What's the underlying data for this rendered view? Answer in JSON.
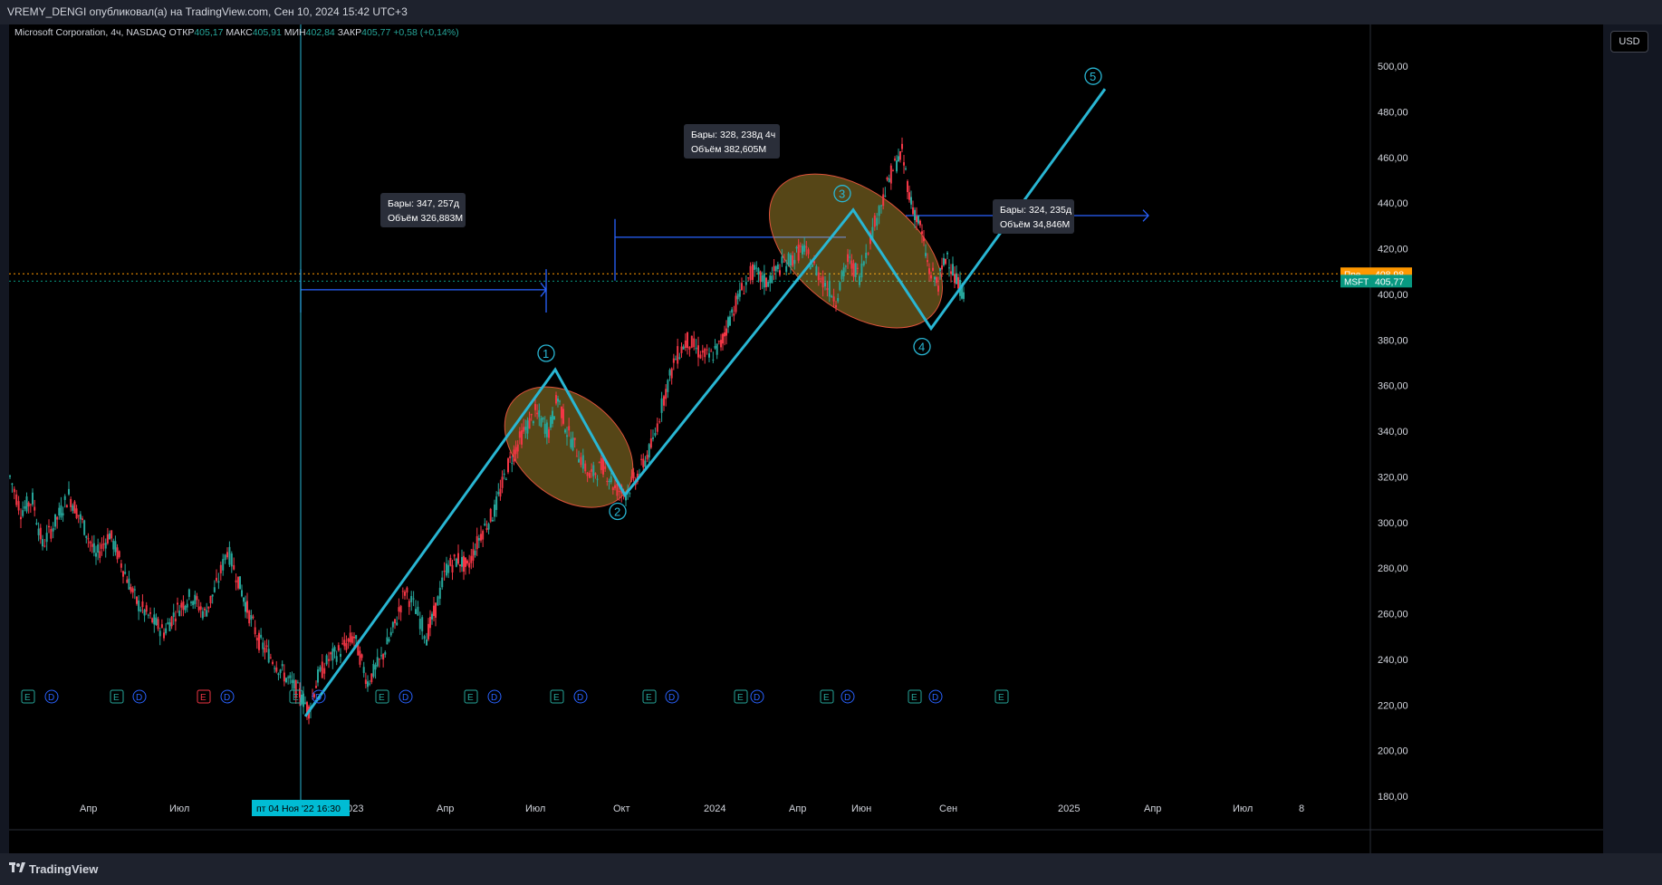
{
  "header": {
    "publisher_text": "VREMY_DENGI опубликовал(а) на TradingView.com, Сен 10, 2024 15:42 UTC+3"
  },
  "legend": {
    "symbol": "Microsoft Corporation, 4ч, NASDAQ",
    "open_label": "ОТКР",
    "open_value": "405,17",
    "high_label": "МАКС",
    "high_value": "405,91",
    "low_label": "МИН",
    "low_value": "402,84",
    "close_label": "ЗАКР",
    "close_value": "405,77",
    "change": "+0,58 (+0,14%)"
  },
  "currency_button": "USD",
  "brand": {
    "name": "TradingView"
  },
  "price_tags": [
    {
      "label": "Пре",
      "value": "408,98",
      "color": "#ff9800"
    },
    {
      "label": "MSFT",
      "value": "405,77",
      "color": "#089981"
    }
  ],
  "crosshair_label": "пт 04 Ноя '22   16:30",
  "measure_boxes": [
    {
      "line1": "Бары: 347, 257д",
      "line2": "Объём 326,883M"
    },
    {
      "line1": "Бары: 328, 238д 4ч",
      "line2": "Объём 382,605M"
    },
    {
      "line1": "Бары: 324, 235д",
      "line2": "Объём 34,846M"
    }
  ],
  "wave_labels": [
    "1",
    "2",
    "3",
    "4",
    "5"
  ],
  "event_markers": [
    {
      "t": "E",
      "c": "#26a69a"
    },
    {
      "t": "D",
      "c": "#2962ff"
    },
    {
      "t": "E",
      "c": "#26a69a"
    },
    {
      "t": "D",
      "c": "#2962ff"
    },
    {
      "t": "E",
      "c": "#f23645"
    },
    {
      "t": "D",
      "c": "#2962ff"
    },
    {
      "t": "E",
      "c": "#26a69a"
    },
    {
      "t": "D",
      "c": "#2962ff"
    },
    {
      "t": "E",
      "c": "#26a69a"
    },
    {
      "t": "D",
      "c": "#2962ff"
    },
    {
      "t": "E",
      "c": "#26a69a"
    },
    {
      "t": "D",
      "c": "#2962ff"
    },
    {
      "t": "E",
      "c": "#26a69a"
    },
    {
      "t": "D",
      "c": "#2962ff"
    },
    {
      "t": "E",
      "c": "#26a69a"
    },
    {
      "t": "D",
      "c": "#2962ff"
    },
    {
      "t": "E",
      "c": "#26a69a"
    },
    {
      "t": "D",
      "c": "#2962ff"
    },
    {
      "t": "E",
      "c": "#26a69a"
    },
    {
      "t": "D",
      "c": "#2962ff"
    },
    {
      "t": "E",
      "c": "#26a69a"
    },
    {
      "t": "D",
      "c": "#2962ff"
    },
    {
      "t": "E",
      "c": "#26a69a"
    },
    {
      "t": "D",
      "c": "#2962ff"
    },
    {
      "t": "E",
      "c": "#e040fb"
    }
  ],
  "chart_data": {
    "type": "line",
    "y_ticks": [
      "500,00",
      "480,00",
      "460,00",
      "440,00",
      "420,00",
      "400,00",
      "380,00",
      "360,00",
      "340,00",
      "320,00",
      "300,00",
      "280,00",
      "260,00",
      "240,00",
      "220,00",
      "200,00",
      "180,00"
    ],
    "x_ticks": [
      "Апр",
      "Июл",
      "2023",
      "Апр",
      "Июл",
      "Окт",
      "2024",
      "Апр",
      "Июн",
      "Сен",
      "2025",
      "Апр",
      "Июл",
      "8"
    ],
    "ylim": [
      180,
      500
    ],
    "colors": {
      "up": "#26a69a",
      "down": "#f23645",
      "wave": "#29b6d3",
      "ellipse": "#f5c842",
      "measure": "#2962ff"
    },
    "price_path": [
      [
        0,
        320
      ],
      [
        12,
        305
      ],
      [
        25,
        310
      ],
      [
        36,
        290
      ],
      [
        50,
        300
      ],
      [
        65,
        312
      ],
      [
        80,
        300
      ],
      [
        95,
        285
      ],
      [
        110,
        295
      ],
      [
        125,
        280
      ],
      [
        140,
        265
      ],
      [
        155,
        258
      ],
      [
        170,
        252
      ],
      [
        185,
        262
      ],
      [
        200,
        268
      ],
      [
        215,
        260
      ],
      [
        228,
        272
      ],
      [
        240,
        288
      ],
      [
        252,
        275
      ],
      [
        262,
        262
      ],
      [
        275,
        248
      ],
      [
        290,
        240
      ],
      [
        305,
        232
      ],
      [
        320,
        225
      ],
      [
        330,
        218
      ],
      [
        340,
        232
      ],
      [
        352,
        240
      ],
      [
        365,
        244
      ],
      [
        380,
        250
      ],
      [
        395,
        230
      ],
      [
        410,
        240
      ],
      [
        425,
        255
      ],
      [
        436,
        270
      ],
      [
        448,
        262
      ],
      [
        460,
        250
      ],
      [
        470,
        262
      ],
      [
        482,
        280
      ],
      [
        495,
        284
      ],
      [
        505,
        280
      ],
      [
        520,
        295
      ],
      [
        535,
        305
      ],
      [
        550,
        325
      ],
      [
        565,
        338
      ],
      [
        580,
        348
      ],
      [
        595,
        340
      ],
      [
        605,
        355
      ],
      [
        615,
        340
      ],
      [
        628,
        330
      ],
      [
        640,
        320
      ],
      [
        655,
        325
      ],
      [
        668,
        315
      ],
      [
        680,
        313
      ],
      [
        695,
        322
      ],
      [
        710,
        335
      ],
      [
        722,
        355
      ],
      [
        735,
        372
      ],
      [
        748,
        380
      ],
      [
        760,
        375
      ],
      [
        772,
        372
      ],
      [
        785,
        378
      ],
      [
        795,
        390
      ],
      [
        808,
        402
      ],
      [
        820,
        410
      ],
      [
        835,
        405
      ],
      [
        850,
        412
      ],
      [
        862,
        415
      ],
      [
        875,
        420
      ],
      [
        888,
        412
      ],
      [
        900,
        405
      ],
      [
        912,
        398
      ],
      [
        925,
        415
      ],
      [
        938,
        408
      ],
      [
        950,
        425
      ],
      [
        962,
        440
      ],
      [
        975,
        455
      ],
      [
        985,
        462
      ],
      [
        995,
        440
      ],
      [
        1005,
        430
      ],
      [
        1015,
        410
      ],
      [
        1025,
        405
      ],
      [
        1035,
        418
      ],
      [
        1045,
        405
      ],
      [
        1055,
        400
      ]
    ],
    "wave_points": [
      {
        "label": "0",
        "x": 327,
        "y": 215
      },
      {
        "label": "1",
        "x": 603,
        "y": 367
      },
      {
        "label": "2",
        "x": 680,
        "y": 312
      },
      {
        "label": "3",
        "x": 932,
        "y": 437
      },
      {
        "label": "4",
        "x": 1018,
        "y": 385
      },
      {
        "label": "5",
        "x": 1210,
        "y": 490
      }
    ],
    "horizontal_levels": [
      {
        "value": 408.98,
        "color": "#ff9800"
      },
      {
        "value": 405.77,
        "color": "#089981"
      }
    ]
  }
}
